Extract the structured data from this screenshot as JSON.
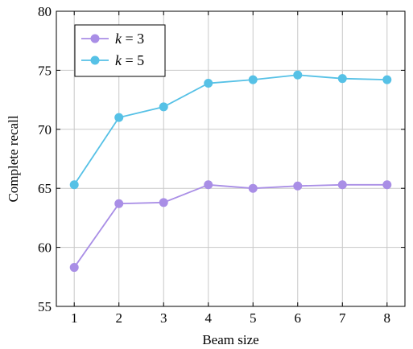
{
  "chart_data": {
    "type": "line",
    "xlabel": "Beam size",
    "ylabel": "Complete recall",
    "x": [
      1,
      2,
      3,
      4,
      5,
      6,
      7,
      8
    ],
    "xlim": [
      0.6,
      8.4
    ],
    "ylim": [
      55,
      80
    ],
    "xticks": [
      "1",
      "2",
      "3",
      "4",
      "5",
      "6",
      "7",
      "8"
    ],
    "yticks": [
      "55",
      "60",
      "65",
      "70",
      "75",
      "80"
    ],
    "grid": true,
    "legend_position": "top-left",
    "series": [
      {
        "name_var": "k",
        "name_value": "3",
        "color": "#a98ee6",
        "values": [
          58.3,
          63.7,
          63.8,
          65.3,
          65.0,
          65.2,
          65.3,
          65.3
        ]
      },
      {
        "name_var": "k",
        "name_value": "5",
        "color": "#56c1e6",
        "values": [
          65.3,
          71.0,
          71.9,
          73.9,
          74.2,
          74.6,
          74.3,
          74.2
        ]
      }
    ]
  }
}
